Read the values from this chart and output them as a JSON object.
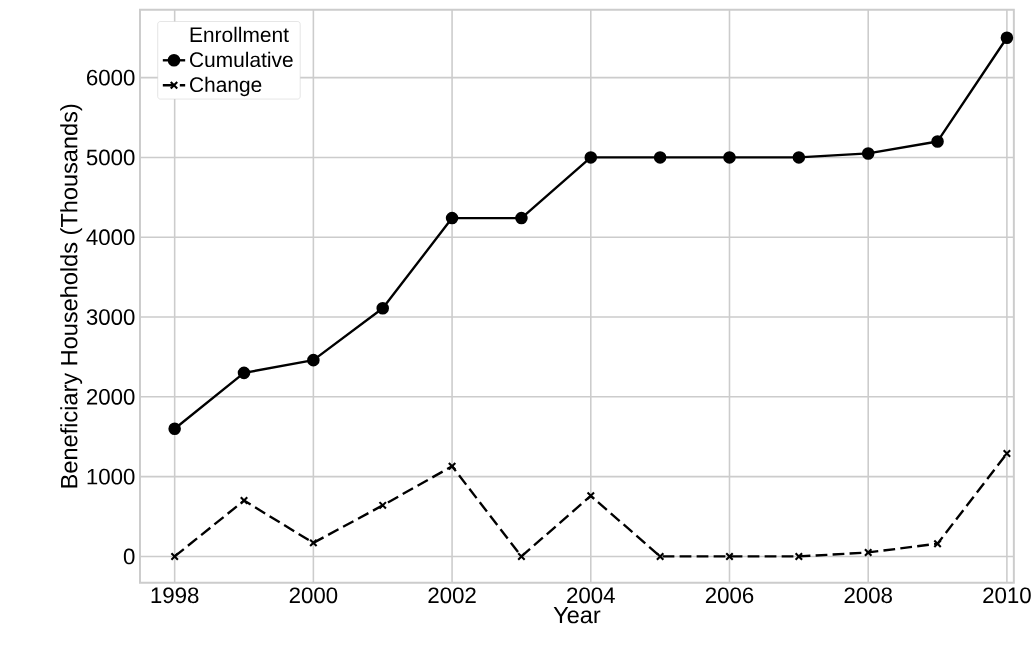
{
  "chart_data": {
    "type": "line",
    "xlabel": "Year",
    "ylabel": "Beneficiary Households (Thousands)",
    "legend_title": "Enrollment",
    "x": [
      1998,
      1999,
      2000,
      2001,
      2002,
      2003,
      2004,
      2005,
      2006,
      2007,
      2008,
      2009,
      2010
    ],
    "series": [
      {
        "name": "Cumulative",
        "color": "#000000",
        "marker": "circle",
        "line_style": "solid",
        "values": [
          1600,
          2300,
          2460,
          3110,
          4240,
          4240,
          5000,
          5000,
          5000,
          5000,
          5050,
          5200,
          6500
        ]
      },
      {
        "name": "Change",
        "color": "#000000",
        "marker": "cross",
        "line_style": "dashed",
        "values": [
          0,
          700,
          170,
          640,
          1130,
          0,
          760,
          0,
          0,
          0,
          50,
          160,
          1290
        ]
      }
    ],
    "xlim": [
      1997.5,
      2010.1
    ],
    "ylim": [
      -330,
      6850
    ],
    "xticks": [
      1998,
      2000,
      2002,
      2004,
      2006,
      2008,
      2010
    ],
    "yticks": [
      0,
      1000,
      2000,
      3000,
      4000,
      5000,
      6000
    ],
    "grid": true,
    "legend": "top left"
  }
}
